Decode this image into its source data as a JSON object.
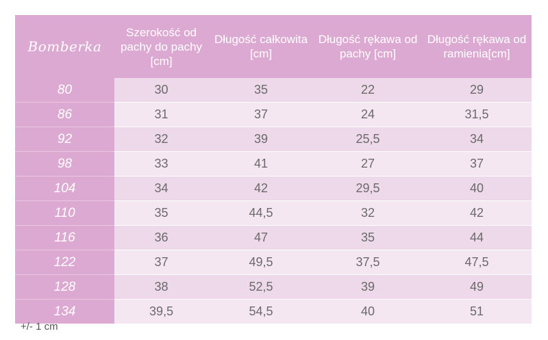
{
  "table": {
    "brand": "Bomberka",
    "headers": [
      "Szerokość od pachy do pachy [cm]",
      "Długość całkowita [cm]",
      "Długość rękawa od pachy [cm]",
      "Długość rękawa od ramienia[cm]"
    ],
    "rows": [
      {
        "size": "80",
        "values": [
          "30",
          "35",
          "22",
          "29"
        ]
      },
      {
        "size": "86",
        "values": [
          "31",
          "37",
          "24",
          "31,5"
        ]
      },
      {
        "size": "92",
        "values": [
          "32",
          "39",
          "25,5",
          "34"
        ]
      },
      {
        "size": "98",
        "values": [
          "33",
          "41",
          "27",
          "37"
        ]
      },
      {
        "size": "104",
        "values": [
          "34",
          "42",
          "29,5",
          "40"
        ]
      },
      {
        "size": "110",
        "values": [
          "35",
          "44,5",
          "32",
          "42"
        ]
      },
      {
        "size": "116",
        "values": [
          "36",
          "47",
          "35",
          "44"
        ]
      },
      {
        "size": "122",
        "values": [
          "37",
          "49,5",
          "37,5",
          "47,5"
        ]
      },
      {
        "size": "128",
        "values": [
          "38",
          "52,5",
          "39",
          "49"
        ]
      },
      {
        "size": "134",
        "values": [
          "39,5",
          "54,5",
          "40",
          "51"
        ]
      }
    ]
  },
  "note": "+/- 1 cm",
  "colors": {
    "header_pink": "#dba9d1",
    "row_even": "#eed9ea",
    "row_odd": "#f5e7f2",
    "value_text": "#6a6a6a"
  }
}
